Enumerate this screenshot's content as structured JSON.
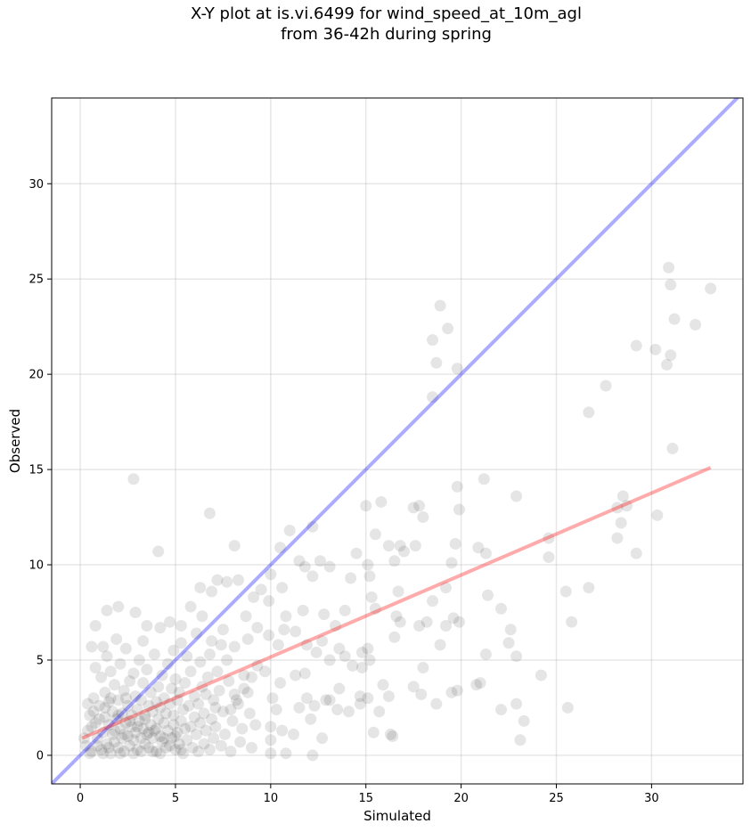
{
  "chart_data": {
    "type": "scatter",
    "title_line1": "X-Y plot at is.vi.6499 for wind_speed_at_10m_agl",
    "title_line2": "from 36-42h during spring",
    "xlabel": "Simulated",
    "ylabel": "Observed",
    "xlim": [
      -1.5,
      34.8
    ],
    "ylim": [
      -1.5,
      34.5
    ],
    "xticks": [
      0,
      5,
      10,
      15,
      20,
      25,
      30
    ],
    "yticks": [
      0,
      5,
      10,
      15,
      20,
      25,
      30
    ],
    "grid": true,
    "point_color": "#000000",
    "point_alpha": 0.1,
    "reference_line": {
      "name": "1:1",
      "color": "#0000ff",
      "x": [
        -1.5,
        34.8
      ],
      "y": [
        -1.5,
        34.8
      ]
    },
    "fit_line": {
      "color": "#ff0000",
      "x": [
        0.1,
        33.1
      ],
      "y": [
        0.9,
        15.1
      ]
    },
    "points": [
      [
        2.8,
        14.5
      ],
      [
        4.1,
        10.7
      ],
      [
        6.8,
        12.7
      ],
      [
        8.1,
        11.0
      ],
      [
        11.0,
        11.8
      ],
      [
        12.2,
        12.0
      ],
      [
        10.5,
        10.9
      ],
      [
        11.5,
        10.2
      ],
      [
        11.8,
        9.9
      ],
      [
        12.6,
        10.2
      ],
      [
        12.2,
        9.4
      ],
      [
        13.1,
        9.9
      ],
      [
        10.0,
        9.5
      ],
      [
        10.6,
        8.8
      ],
      [
        9.5,
        8.7
      ],
      [
        9.9,
        8.1
      ],
      [
        9.1,
        8.3
      ],
      [
        8.3,
        9.2
      ],
      [
        7.7,
        9.1
      ],
      [
        7.2,
        9.2
      ],
      [
        6.9,
        8.6
      ],
      [
        6.3,
        8.8
      ],
      [
        5.8,
        7.8
      ],
      [
        6.4,
        7.3
      ],
      [
        5.3,
        6.8
      ],
      [
        4.7,
        7.0
      ],
      [
        4.2,
        6.7
      ],
      [
        3.5,
        6.8
      ],
      [
        2.9,
        7.5
      ],
      [
        2.0,
        7.8
      ],
      [
        1.4,
        7.6
      ],
      [
        0.8,
        6.8
      ],
      [
        0.6,
        5.7
      ],
      [
        1.2,
        5.7
      ],
      [
        3.3,
        6.0
      ],
      [
        10.8,
        7.3
      ],
      [
        11.7,
        7.6
      ],
      [
        12.8,
        7.4
      ],
      [
        13.4,
        6.8
      ],
      [
        12.7,
        6.0
      ],
      [
        13.9,
        7.6
      ],
      [
        14.2,
        9.3
      ],
      [
        14.5,
        10.6
      ],
      [
        15.1,
        10.0
      ],
      [
        15.2,
        9.4
      ],
      [
        15.3,
        8.3
      ],
      [
        15.0,
        13.1
      ],
      [
        15.8,
        13.3
      ],
      [
        15.5,
        11.6
      ],
      [
        16.2,
        11.0
      ],
      [
        16.5,
        10.2
      ],
      [
        16.8,
        11.0
      ],
      [
        17.0,
        10.7
      ],
      [
        17.6,
        11.0
      ],
      [
        17.8,
        13.1
      ],
      [
        18.0,
        12.5
      ],
      [
        17.5,
        13.0
      ],
      [
        16.7,
        8.6
      ],
      [
        16.6,
        7.3
      ],
      [
        16.8,
        7.0
      ],
      [
        16.5,
        6.2
      ],
      [
        17.8,
        6.8
      ],
      [
        18.2,
        7.0
      ],
      [
        18.5,
        8.1
      ],
      [
        19.2,
        8.8
      ],
      [
        19.5,
        10.1
      ],
      [
        19.7,
        11.1
      ],
      [
        19.9,
        12.9
      ],
      [
        19.8,
        14.1
      ],
      [
        21.2,
        14.5
      ],
      [
        21.3,
        10.6
      ],
      [
        20.9,
        10.9
      ],
      [
        21.4,
        8.4
      ],
      [
        19.6,
        7.2
      ],
      [
        19.2,
        6.8
      ],
      [
        19.9,
        7.0
      ],
      [
        18.9,
        5.8
      ],
      [
        18.0,
        4.6
      ],
      [
        17.5,
        3.6
      ],
      [
        17.9,
        3.2
      ],
      [
        18.7,
        2.7
      ],
      [
        19.5,
        3.3
      ],
      [
        19.8,
        3.4
      ],
      [
        20.8,
        3.7
      ],
      [
        21.0,
        3.8
      ],
      [
        21.3,
        5.3
      ],
      [
        22.1,
        7.7
      ],
      [
        22.6,
        6.6
      ],
      [
        22.5,
        5.9
      ],
      [
        22.9,
        5.2
      ],
      [
        22.9,
        13.6
      ],
      [
        24.6,
        11.4
      ],
      [
        24.6,
        10.4
      ],
      [
        25.5,
        8.6
      ],
      [
        25.8,
        7.0
      ],
      [
        26.7,
        8.8
      ],
      [
        26.7,
        18.0
      ],
      [
        27.6,
        19.4
      ],
      [
        28.2,
        11.4
      ],
      [
        28.2,
        13.0
      ],
      [
        28.4,
        12.2
      ],
      [
        28.5,
        13.6
      ],
      [
        28.7,
        13.1
      ],
      [
        29.2,
        10.6
      ],
      [
        30.3,
        12.6
      ],
      [
        18.5,
        18.8
      ],
      [
        18.7,
        20.6
      ],
      [
        18.5,
        21.8
      ],
      [
        18.9,
        23.6
      ],
      [
        19.3,
        22.4
      ],
      [
        19.8,
        20.3
      ],
      [
        29.2,
        21.5
      ],
      [
        30.2,
        21.3
      ],
      [
        30.8,
        20.5
      ],
      [
        31.0,
        21.0
      ],
      [
        30.9,
        25.6
      ],
      [
        31.0,
        24.7
      ],
      [
        31.2,
        22.9
      ],
      [
        32.3,
        22.6
      ],
      [
        33.1,
        24.5
      ],
      [
        31.1,
        16.1
      ],
      [
        25.6,
        2.5
      ],
      [
        24.2,
        4.2
      ],
      [
        23.1,
        0.8
      ],
      [
        23.3,
        1.8
      ],
      [
        22.9,
        2.7
      ],
      [
        22.1,
        2.4
      ],
      [
        15.9,
        3.7
      ],
      [
        16.2,
        3.1
      ],
      [
        16.3,
        1.1
      ],
      [
        16.4,
        1.0
      ],
      [
        15.4,
        1.2
      ],
      [
        15.7,
        2.3
      ],
      [
        14.7,
        2.7
      ],
      [
        14.1,
        2.3
      ],
      [
        13.6,
        3.5
      ],
      [
        12.9,
        2.9
      ],
      [
        12.7,
        0.9
      ],
      [
        12.2,
        0.0
      ],
      [
        13.1,
        2.9
      ],
      [
        13.5,
        2.4
      ],
      [
        11.9,
        3.0
      ],
      [
        11.3,
        4.2
      ],
      [
        11.8,
        4.3
      ],
      [
        10.5,
        3.8
      ],
      [
        10.1,
        3.0
      ],
      [
        10.3,
        2.4
      ],
      [
        10.0,
        1.5
      ],
      [
        10.0,
        0.8
      ],
      [
        10.0,
        0.1
      ],
      [
        10.8,
        0.1
      ],
      [
        10.6,
        1.3
      ],
      [
        11.2,
        1.1
      ],
      [
        11.5,
        2.5
      ],
      [
        12.3,
        2.6
      ],
      [
        12.1,
        1.9
      ],
      [
        14.3,
        4.7
      ],
      [
        14.8,
        5.4
      ],
      [
        15.1,
        5.6
      ],
      [
        14.8,
        4.6
      ],
      [
        15.2,
        5.0
      ],
      [
        15.5,
        7.7
      ],
      [
        15.1,
        3.0
      ],
      [
        14.7,
        3.1
      ],
      [
        9.7,
        4.4
      ],
      [
        9.3,
        4.7
      ],
      [
        9.0,
        4.1
      ],
      [
        8.8,
        3.3
      ],
      [
        8.1,
        3.2
      ],
      [
        8.6,
        4.2
      ],
      [
        8.3,
        2.7
      ],
      [
        7.9,
        2.4
      ],
      [
        7.1,
        2.5
      ],
      [
        6.6,
        3.2
      ],
      [
        7.2,
        4.4
      ],
      [
        7.7,
        5.0
      ],
      [
        8.1,
        5.7
      ],
      [
        8.8,
        6.1
      ],
      [
        9.3,
        6.7
      ],
      [
        9.9,
        6.3
      ],
      [
        10.4,
        5.8
      ],
      [
        10.7,
        6.6
      ],
      [
        11.3,
        6.5
      ],
      [
        11.9,
        5.8
      ],
      [
        12.4,
        5.4
      ],
      [
        13.1,
        5.0
      ],
      [
        13.6,
        5.6
      ],
      [
        13.9,
        5.2
      ],
      [
        8.7,
        7.3
      ],
      [
        7.5,
        6.6
      ],
      [
        6.9,
        6.0
      ],
      [
        6.1,
        6.4
      ],
      [
        5.3,
        5.9
      ],
      [
        4.9,
        5.5
      ],
      [
        5.6,
        5.2
      ],
      [
        6.3,
        4.9
      ],
      [
        6.8,
        5.3
      ],
      [
        7.4,
        5.8
      ]
    ],
    "cluster_points": [
      [
        0.3,
        0.5
      ],
      [
        0.4,
        1.3
      ],
      [
        0.5,
        2.1
      ],
      [
        0.6,
        0.2
      ],
      [
        0.7,
        3.0
      ],
      [
        0.8,
        1.7
      ],
      [
        0.9,
        0.9
      ],
      [
        1.0,
        2.6
      ],
      [
        1.1,
        0.3
      ],
      [
        1.1,
        4.1
      ],
      [
        1.2,
        1.2
      ],
      [
        1.3,
        2.0
      ],
      [
        1.3,
        3.3
      ],
      [
        1.4,
        0.6
      ],
      [
        1.4,
        5.2
      ],
      [
        1.5,
        1.6
      ],
      [
        1.5,
        2.8
      ],
      [
        1.6,
        0.1
      ],
      [
        1.6,
        4.4
      ],
      [
        1.7,
        1.1
      ],
      [
        1.7,
        2.3
      ],
      [
        1.8,
        3.7
      ],
      [
        1.8,
        0.7
      ],
      [
        1.9,
        1.9
      ],
      [
        1.9,
        6.1
      ],
      [
        2.0,
        0.4
      ],
      [
        2.0,
        2.9
      ],
      [
        2.1,
        1.4
      ],
      [
        2.1,
        4.8
      ],
      [
        2.2,
        0.9
      ],
      [
        2.2,
        2.2
      ],
      [
        2.3,
        3.4
      ],
      [
        2.3,
        0.2
      ],
      [
        2.4,
        1.7
      ],
      [
        2.4,
        5.6
      ],
      [
        2.5,
        1.0
      ],
      [
        2.5,
        2.6
      ],
      [
        2.6,
        0.5
      ],
      [
        2.6,
        3.9
      ],
      [
        2.7,
        1.5
      ],
      [
        2.7,
        2.1
      ],
      [
        2.8,
        0.8
      ],
      [
        2.8,
        4.3
      ],
      [
        2.9,
        1.2
      ],
      [
        2.9,
        3.1
      ],
      [
        3.0,
        0.3
      ],
      [
        3.0,
        2.4
      ],
      [
        3.1,
        1.8
      ],
      [
        3.1,
        5.0
      ],
      [
        3.2,
        0.9
      ],
      [
        3.2,
        2.9
      ],
      [
        3.3,
        1.4
      ],
      [
        3.3,
        3.8
      ],
      [
        3.4,
        0.6
      ],
      [
        3.4,
        2.1
      ],
      [
        3.5,
        1.1
      ],
      [
        3.5,
        4.5
      ],
      [
        3.6,
        2.6
      ],
      [
        3.6,
        0.4
      ],
      [
        3.7,
        1.6
      ],
      [
        3.7,
        3.3
      ],
      [
        3.8,
        0.9
      ],
      [
        3.8,
        2.3
      ],
      [
        3.9,
        1.3
      ],
      [
        3.9,
        5.3
      ],
      [
        4.0,
        2.8
      ],
      [
        4.0,
        0.2
      ],
      [
        4.1,
        1.9
      ],
      [
        4.1,
        3.6
      ],
      [
        4.2,
        1.0
      ],
      [
        4.2,
        2.5
      ],
      [
        4.3,
        4.2
      ],
      [
        4.3,
        0.7
      ],
      [
        4.4,
        1.7
      ],
      [
        4.4,
        3.0
      ],
      [
        4.5,
        2.2
      ],
      [
        4.5,
        0.4
      ],
      [
        4.6,
        1.3
      ],
      [
        4.6,
        4.8
      ],
      [
        4.7,
        2.7
      ],
      [
        4.8,
        0.9
      ],
      [
        4.8,
        3.5
      ],
      [
        4.9,
        1.6
      ],
      [
        4.9,
        2.1
      ],
      [
        5.0,
        0.3
      ],
      [
        5.0,
        4.0
      ],
      [
        5.1,
        1.2
      ],
      [
        5.1,
        2.9
      ],
      [
        5.2,
        0.6
      ],
      [
        5.2,
        3.3
      ],
      [
        5.3,
        1.8
      ],
      [
        5.4,
        2.4
      ],
      [
        5.4,
        0.1
      ],
      [
        5.5,
        1.4
      ],
      [
        5.5,
        3.8
      ],
      [
        5.6,
        0.8
      ],
      [
        5.7,
        2.6
      ],
      [
        5.8,
        1.5
      ],
      [
        5.8,
        4.4
      ],
      [
        5.9,
        0.4
      ],
      [
        6.0,
        2.0
      ],
      [
        6.0,
        3.1
      ],
      [
        6.1,
        1.1
      ],
      [
        6.2,
        0.2
      ],
      [
        6.2,
        2.7
      ],
      [
        6.3,
        1.7
      ],
      [
        6.4,
        3.6
      ],
      [
        6.5,
        0.6
      ],
      [
        6.5,
        2.2
      ],
      [
        6.6,
        1.3
      ],
      [
        6.7,
        4.1
      ],
      [
        6.8,
        0.3
      ],
      [
        6.9,
        1.9
      ],
      [
        7.0,
        2.9
      ],
      [
        7.0,
        0.9
      ],
      [
        7.1,
        1.5
      ],
      [
        7.3,
        3.4
      ],
      [
        7.4,
        0.5
      ],
      [
        7.5,
        2.3
      ],
      [
        7.6,
        1.1
      ],
      [
        7.8,
        3.9
      ],
      [
        7.9,
        0.2
      ],
      [
        8.0,
        1.8
      ],
      [
        8.2,
        2.9
      ],
      [
        8.4,
        0.7
      ],
      [
        8.5,
        1.4
      ],
      [
        8.6,
        3.5
      ],
      [
        8.9,
        2.2
      ],
      [
        9.0,
        0.4
      ],
      [
        9.2,
        1.6
      ],
      [
        0.2,
        0.9
      ],
      [
        0.4,
        2.7
      ],
      [
        0.5,
        0.1
      ],
      [
        0.6,
        1.5
      ],
      [
        0.7,
        2.3
      ],
      [
        0.8,
        4.6
      ],
      [
        0.9,
        0.5
      ],
      [
        1.0,
        1.9
      ],
      [
        1.2,
        0.1
      ],
      [
        1.3,
        2.5
      ],
      [
        1.5,
        0.4
      ],
      [
        1.6,
        3.0
      ],
      [
        1.8,
        1.3
      ],
      [
        2.0,
        2.1
      ],
      [
        2.1,
        0.1
      ],
      [
        2.3,
        1.1
      ],
      [
        2.4,
        3.0
      ],
      [
        2.6,
        1.8
      ],
      [
        2.8,
        0.1
      ],
      [
        3.0,
        1.5
      ],
      [
        3.2,
        0.2
      ],
      [
        3.4,
        1.9
      ],
      [
        3.6,
        1.2
      ],
      [
        3.8,
        0.2
      ],
      [
        4.0,
        1.4
      ],
      [
        4.2,
        0.1
      ],
      [
        4.4,
        0.9
      ],
      [
        4.7,
        0.5
      ],
      [
        5.0,
        1.0
      ],
      [
        5.3,
        0.3
      ]
    ]
  }
}
